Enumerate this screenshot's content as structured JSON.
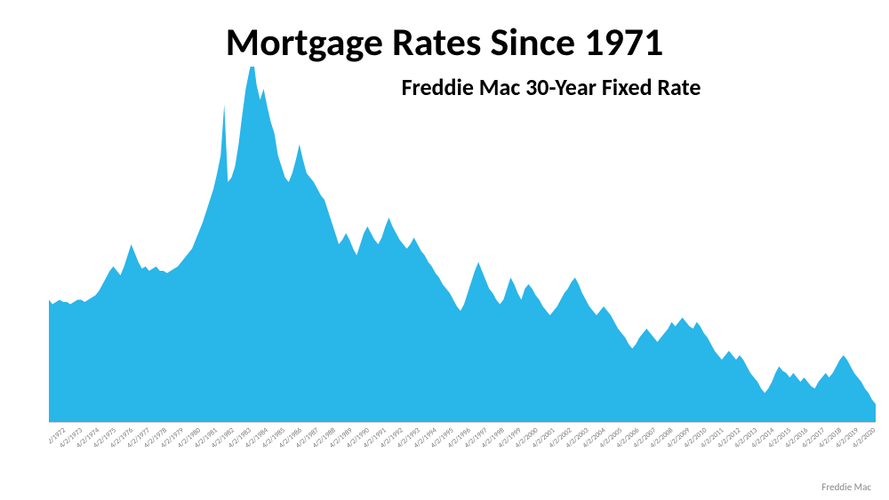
{
  "chart": {
    "type": "area",
    "title": "Mortgage Rates Since 1971",
    "title_fontsize": 44,
    "title_fontweight": 700,
    "title_color": "#000000",
    "subtitle": "Freddie Mac 30-Year Fixed Rate",
    "subtitle_fontsize": 26,
    "subtitle_fontweight": 700,
    "subtitle_color": "#000000",
    "source": "Freddie Mac",
    "source_fontsize": 11,
    "source_color": "#888888",
    "fill_color": "#29b6e8",
    "background_color": "#ffffff",
    "axis_color": "#888888",
    "tick_label_color": "#555555",
    "xtick_label_color": "#777777",
    "ylim": [
      2,
      18
    ],
    "ytick_step": 2,
    "tick_fontsize": 11,
    "xtick_fontsize": 8,
    "x_labels": [
      "4/2/1971",
      "4/2/1972",
      "4/2/1973",
      "4/2/1974",
      "4/2/1975",
      "4/2/1976",
      "4/2/1977",
      "4/2/1978",
      "4/2/1979",
      "4/2/1980",
      "4/2/1981",
      "4/2/1982",
      "4/2/1983",
      "4/2/1984",
      "4/2/1985",
      "4/2/1986",
      "4/2/1987",
      "4/2/1988",
      "4/2/1989",
      "4/2/1990",
      "4/2/1991",
      "4/2/1992",
      "4/2/1993",
      "4/2/1994",
      "4/2/1995",
      "4/2/1996",
      "4/2/1997",
      "4/2/1998",
      "4/2/1999",
      "4/2/2000",
      "4/2/2001",
      "4/2/2002",
      "4/2/2003",
      "4/2/2004",
      "4/2/2005",
      "4/2/2006",
      "4/2/2007",
      "4/2/2008",
      "4/2/2009",
      "4/2/2010",
      "4/2/2011",
      "4/2/2012",
      "4/2/2013",
      "4/2/2014",
      "4/2/2015",
      "4/2/2016",
      "4/2/2017",
      "4/2/2018",
      "4/2/2019",
      "4/2/2020"
    ],
    "series": [
      7.5,
      7.3,
      7.4,
      7.5,
      7.4,
      7.4,
      7.3,
      7.4,
      7.5,
      7.5,
      7.4,
      7.5,
      7.6,
      7.7,
      7.9,
      8.2,
      8.5,
      8.8,
      9.0,
      8.8,
      8.6,
      9.0,
      9.5,
      10.0,
      9.6,
      9.2,
      8.9,
      9.0,
      8.8,
      8.9,
      9.0,
      8.8,
      8.8,
      8.7,
      8.8,
      8.9,
      9.0,
      9.2,
      9.4,
      9.6,
      9.8,
      10.2,
      10.6,
      11.0,
      11.5,
      12.0,
      12.5,
      13.2,
      14.0,
      16.3,
      12.8,
      13.0,
      13.5,
      14.5,
      15.8,
      17.0,
      17.8,
      18.5,
      17.2,
      16.5,
      17.0,
      16.2,
      15.5,
      15.0,
      14.0,
      13.5,
      13.0,
      12.8,
      13.2,
      13.8,
      14.5,
      13.8,
      13.2,
      13.0,
      12.8,
      12.5,
      12.2,
      12.0,
      11.5,
      11.0,
      10.5,
      10.0,
      10.2,
      10.5,
      10.2,
      9.8,
      9.5,
      10.0,
      10.5,
      10.8,
      10.5,
      10.2,
      10.0,
      10.3,
      10.8,
      11.2,
      10.8,
      10.5,
      10.2,
      10.0,
      9.8,
      10.0,
      10.3,
      10.0,
      9.7,
      9.5,
      9.2,
      9.0,
      8.7,
      8.5,
      8.2,
      8.0,
      7.8,
      7.5,
      7.2,
      7.0,
      7.3,
      7.8,
      8.3,
      8.8,
      9.2,
      8.8,
      8.4,
      8.0,
      7.8,
      7.5,
      7.3,
      7.5,
      8.0,
      8.5,
      8.2,
      7.8,
      7.5,
      8.0,
      8.2,
      8.0,
      7.7,
      7.5,
      7.2,
      7.0,
      6.8,
      7.0,
      7.2,
      7.5,
      7.8,
      8.0,
      8.3,
      8.5,
      8.2,
      7.8,
      7.5,
      7.2,
      7.0,
      6.8,
      7.0,
      7.2,
      7.0,
      6.8,
      6.5,
      6.2,
      6.0,
      5.8,
      5.5,
      5.3,
      5.5,
      5.8,
      6.0,
      6.2,
      6.0,
      5.8,
      5.6,
      5.8,
      6.0,
      6.2,
      6.5,
      6.3,
      6.5,
      6.7,
      6.5,
      6.3,
      6.2,
      6.5,
      6.3,
      6.0,
      5.8,
      5.5,
      5.2,
      5.0,
      4.8,
      5.0,
      5.2,
      5.0,
      4.8,
      5.0,
      4.8,
      4.5,
      4.2,
      4.0,
      3.8,
      3.5,
      3.3,
      3.5,
      3.8,
      4.2,
      4.5,
      4.3,
      4.2,
      4.0,
      4.2,
      4.0,
      3.8,
      4.0,
      3.8,
      3.6,
      3.5,
      3.8,
      4.0,
      4.2,
      4.0,
      4.2,
      4.5,
      4.8,
      5.0,
      4.8,
      4.5,
      4.2,
      4.0,
      3.8,
      3.5,
      3.3,
      3.0,
      2.8
    ]
  }
}
